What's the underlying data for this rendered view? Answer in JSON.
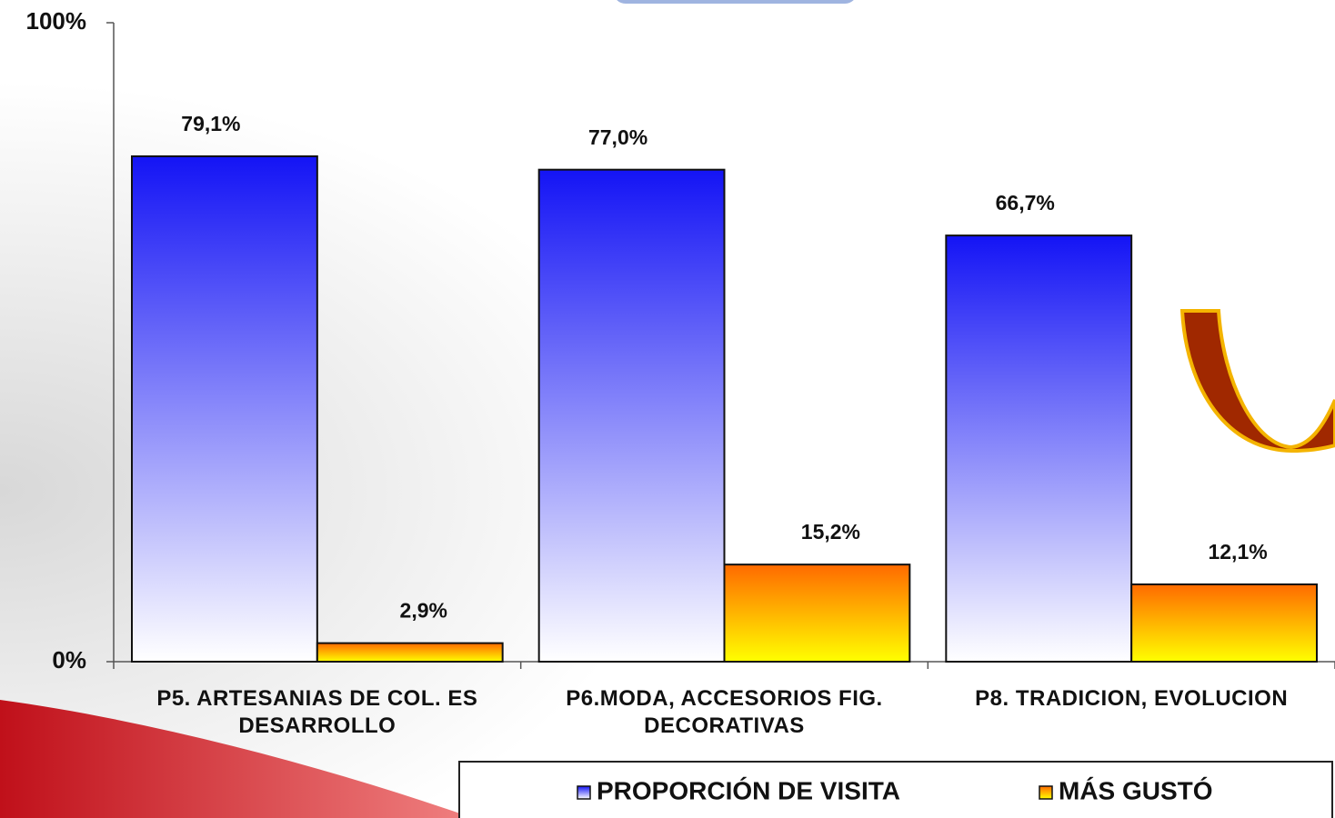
{
  "chart_data": {
    "type": "bar",
    "categories": [
      "P5. ARTESANIAS DE COL. ES DESARROLLO",
      "P6.MODA, ACCESORIOS FIG. DECORATIVAS",
      "P8. TRADICION, EVOLUCION"
    ],
    "series": [
      {
        "name": "PROPORCIÓN DE VISITA",
        "color": "#1414f5",
        "values": [
          79.1,
          77.0,
          66.7
        ],
        "value_labels": [
          "79,1%",
          "77,0%",
          "66,7%"
        ]
      },
      {
        "name": "MÁS GUSTÓ",
        "color": "#ff6a00",
        "values": [
          2.9,
          15.2,
          12.1
        ],
        "value_labels": [
          "2,9%",
          "15,2%",
          "12,1%"
        ]
      }
    ],
    "ylim": [
      0,
      100
    ],
    "yticks": [
      {
        "value": 0,
        "label": "0%"
      },
      {
        "value": 100,
        "label": "100%"
      }
    ],
    "grid": false,
    "legend": "bottom"
  }
}
